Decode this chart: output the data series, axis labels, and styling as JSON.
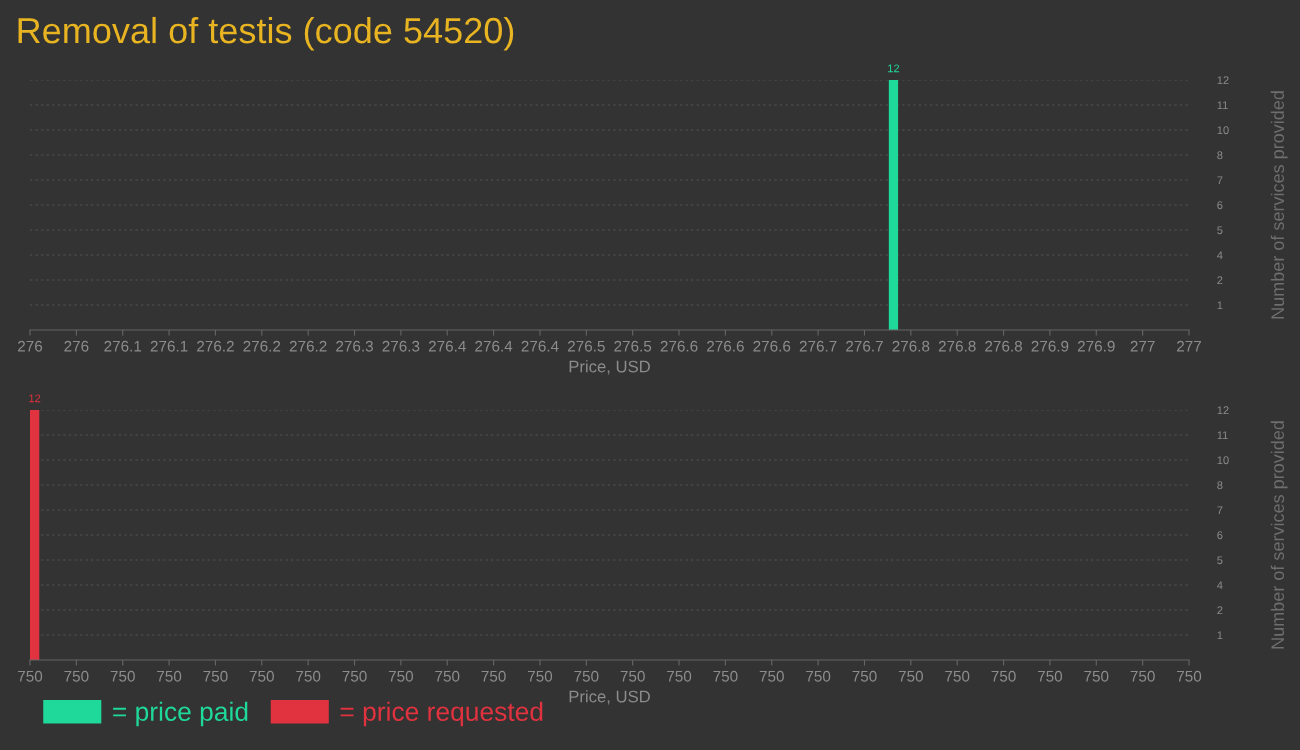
{
  "chart_data": [
    {
      "type": "histogram",
      "title": "Removal of testis (code 54520)",
      "xlabel": "Price, USD",
      "ylabel": "Number of services provided",
      "bins": [
        276.741,
        276.749
      ],
      "xlim": [
        276,
        277
      ],
      "xticks": [
        {
          "value": 276,
          "label": "276"
        },
        {
          "value": 276.04,
          "label": "276"
        },
        {
          "value": 276.08,
          "label": "276.1"
        },
        {
          "value": 276.12,
          "label": "276.1"
        },
        {
          "value": 276.16,
          "label": "276.2"
        },
        {
          "value": 276.2,
          "label": "276.2"
        },
        {
          "value": 276.24,
          "label": "276.2"
        },
        {
          "value": 276.28,
          "label": "276.3"
        },
        {
          "value": 276.32,
          "label": "276.3"
        },
        {
          "value": 276.36,
          "label": "276.4"
        },
        {
          "value": 276.4,
          "label": "276.4"
        },
        {
          "value": 276.44,
          "label": "276.4"
        },
        {
          "value": 276.48,
          "label": "276.5"
        },
        {
          "value": 276.52,
          "label": "276.5"
        },
        {
          "value": 276.56,
          "label": "276.6"
        },
        {
          "value": 276.6,
          "label": "276.6"
        },
        {
          "value": 276.64,
          "label": "276.6"
        },
        {
          "value": 276.68,
          "label": "276.7"
        },
        {
          "value": 276.72,
          "label": "276.7"
        },
        {
          "value": 276.76,
          "label": "276.8"
        },
        {
          "value": 276.8,
          "label": "276.8"
        },
        {
          "value": 276.84,
          "label": "276.8"
        },
        {
          "value": 276.88,
          "label": "276.9"
        },
        {
          "value": 276.92,
          "label": "276.9"
        },
        {
          "value": 276.96,
          "label": "277"
        },
        {
          "value": 277,
          "label": "277"
        }
      ],
      "ylim": [
        0,
        12
      ],
      "yticks": [
        {
          "value": 1.2,
          "label": "1"
        },
        {
          "value": 2.4,
          "label": "2"
        },
        {
          "value": 3.6,
          "label": "4"
        },
        {
          "value": 4.8,
          "label": "5"
        },
        {
          "value": 6,
          "label": "6"
        },
        {
          "value": 7.2,
          "label": "7"
        },
        {
          "value": 8.4,
          "label": "8"
        },
        {
          "value": 9.6,
          "label": "10"
        },
        {
          "value": 10.8,
          "label": "11"
        },
        {
          "value": 12,
          "label": "12"
        }
      ],
      "grid": "y",
      "data_labels": true,
      "legend": "bottom left",
      "series": [
        {
          "name": "= price paid",
          "color": "#1fd99b",
          "values": [
            12
          ]
        }
      ]
    },
    {
      "type": "histogram",
      "xlabel": "Price, USD",
      "ylabel": "Number of services provided",
      "bins": [
        750,
        750.0008
      ],
      "xlim": [
        750,
        750.1
      ],
      "xticks": [
        {
          "value": 750,
          "label": "750"
        },
        {
          "value": 750.004,
          "label": "750"
        },
        {
          "value": 750.008,
          "label": "750"
        },
        {
          "value": 750.012,
          "label": "750"
        },
        {
          "value": 750.016,
          "label": "750"
        },
        {
          "value": 750.02,
          "label": "750"
        },
        {
          "value": 750.024,
          "label": "750"
        },
        {
          "value": 750.028,
          "label": "750"
        },
        {
          "value": 750.032,
          "label": "750"
        },
        {
          "value": 750.036,
          "label": "750"
        },
        {
          "value": 750.04,
          "label": "750"
        },
        {
          "value": 750.044,
          "label": "750"
        },
        {
          "value": 750.048,
          "label": "750"
        },
        {
          "value": 750.052,
          "label": "750"
        },
        {
          "value": 750.056,
          "label": "750"
        },
        {
          "value": 750.06,
          "label": "750"
        },
        {
          "value": 750.064,
          "label": "750"
        },
        {
          "value": 750.068,
          "label": "750"
        },
        {
          "value": 750.072,
          "label": "750"
        },
        {
          "value": 750.076,
          "label": "750"
        },
        {
          "value": 750.08,
          "label": "750"
        },
        {
          "value": 750.084,
          "label": "750"
        },
        {
          "value": 750.088,
          "label": "750"
        },
        {
          "value": 750.092,
          "label": "750"
        },
        {
          "value": 750.096,
          "label": "750"
        },
        {
          "value": 750.1,
          "label": "750"
        }
      ],
      "ylim": [
        0,
        12
      ],
      "yticks": [
        {
          "value": 1.2,
          "label": "1"
        },
        {
          "value": 2.4,
          "label": "2"
        },
        {
          "value": 3.6,
          "label": "4"
        },
        {
          "value": 4.8,
          "label": "5"
        },
        {
          "value": 6,
          "label": "6"
        },
        {
          "value": 7.2,
          "label": "7"
        },
        {
          "value": 8.4,
          "label": "8"
        },
        {
          "value": 9.6,
          "label": "10"
        },
        {
          "value": 10.8,
          "label": "11"
        },
        {
          "value": 12,
          "label": "12"
        }
      ],
      "grid": "y",
      "data_labels": true,
      "legend": "bottom left",
      "series": [
        {
          "name": "= price requested",
          "color": "#e0323f",
          "values": [
            12
          ]
        }
      ]
    }
  ]
}
